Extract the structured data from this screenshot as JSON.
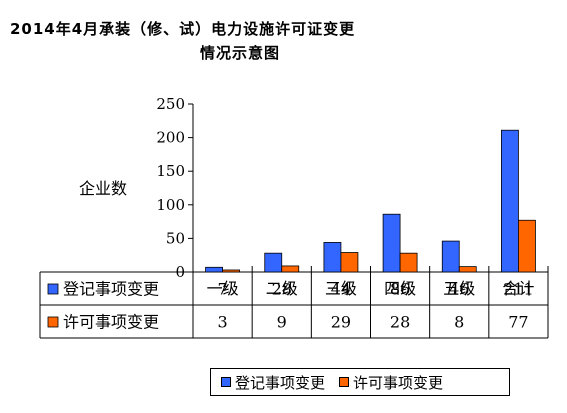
{
  "titles": {
    "line1": "2014年4月承装（修、试）电力设施许可证变更",
    "line2": "情况示意图"
  },
  "chart_data": {
    "type": "bar",
    "categories": [
      "一级",
      "二级",
      "三级",
      "四级",
      "五级",
      "合计"
    ],
    "series": [
      {
        "name": "登记事项变更",
        "values": [
          7,
          28,
          44,
          86,
          46,
          211
        ],
        "color": "#3366FF"
      },
      {
        "name": "许可事项变更",
        "values": [
          3,
          9,
          29,
          28,
          8,
          77
        ],
        "color": "#FF6600"
      }
    ],
    "ylabel": "企业数",
    "ylim": [
      0,
      250
    ],
    "yticks": [
      0,
      50,
      100,
      150,
      200,
      250
    ],
    "grid": false,
    "legend": "bottom",
    "data_table": true
  }
}
